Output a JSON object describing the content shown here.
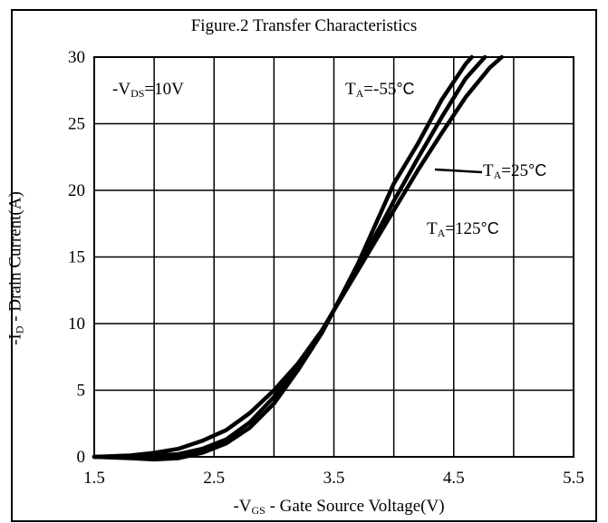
{
  "chart_data": {
    "type": "line",
    "title": "Figure.2 Transfer Characteristics",
    "xlabel": {
      "pre": "-V",
      "sub": "GS",
      "post": " - Gate Source Voltage(V)"
    },
    "ylabel": {
      "pre": "-I",
      "sub": "D",
      "post": " - Drain Current(A)"
    },
    "xlim": [
      1.5,
      5.5
    ],
    "ylim": [
      0,
      30
    ],
    "xticks": [
      "1.5",
      "2.5",
      "3.5",
      "4.5",
      "5.5"
    ],
    "yticks": [
      "0",
      "5",
      "10",
      "15",
      "20",
      "25",
      "30"
    ],
    "grid": true,
    "condition": {
      "pre": "-V",
      "sub": "DS",
      "post": "=10V"
    },
    "annotations": [
      {
        "pre": "T",
        "sub": "A",
        "num": "=-55",
        "unit": "°C"
      },
      {
        "pre": "T",
        "sub": "A",
        "num": "=25",
        "unit": "°C"
      },
      {
        "pre": "T",
        "sub": "A",
        "num": "=125",
        "unit": "°C"
      }
    ],
    "series": [
      {
        "x": [
          1.5,
          1.8,
          2.0,
          2.2,
          2.4,
          2.6,
          2.8,
          3.0,
          3.2,
          3.4,
          3.5,
          3.7,
          3.9,
          4.0,
          4.2,
          4.4,
          4.6,
          4.65
        ],
        "y": [
          0.0,
          0.1,
          0.3,
          0.6,
          1.2,
          2.0,
          3.3,
          5.0,
          7.0,
          9.5,
          11.0,
          14.5,
          18.5,
          20.5,
          23.5,
          26.8,
          29.5,
          30.0
        ]
      },
      {
        "x": [
          1.5,
          1.8,
          2.0,
          2.2,
          2.4,
          2.6,
          2.8,
          3.0,
          3.2,
          3.4,
          3.5,
          3.7,
          3.9,
          4.0,
          4.2,
          4.4,
          4.6,
          4.76
        ],
        "y": [
          0.0,
          0.0,
          0.1,
          0.2,
          0.6,
          1.3,
          2.6,
          4.5,
          6.8,
          9.4,
          11.0,
          14.3,
          17.5,
          19.2,
          22.4,
          25.5,
          28.4,
          30.0
        ]
      },
      {
        "x": [
          1.5,
          1.8,
          2.0,
          2.2,
          2.4,
          2.6,
          2.8,
          3.0,
          3.2,
          3.4,
          3.5,
          3.7,
          3.9,
          4.0,
          4.2,
          4.4,
          4.6,
          4.8,
          4.9
        ],
        "y": [
          0.0,
          -0.1,
          -0.2,
          -0.1,
          0.3,
          1.0,
          2.2,
          4.0,
          6.5,
          9.3,
          11.0,
          14.0,
          17.0,
          18.5,
          21.5,
          24.3,
          27.0,
          29.2,
          30.0
        ]
      }
    ]
  }
}
